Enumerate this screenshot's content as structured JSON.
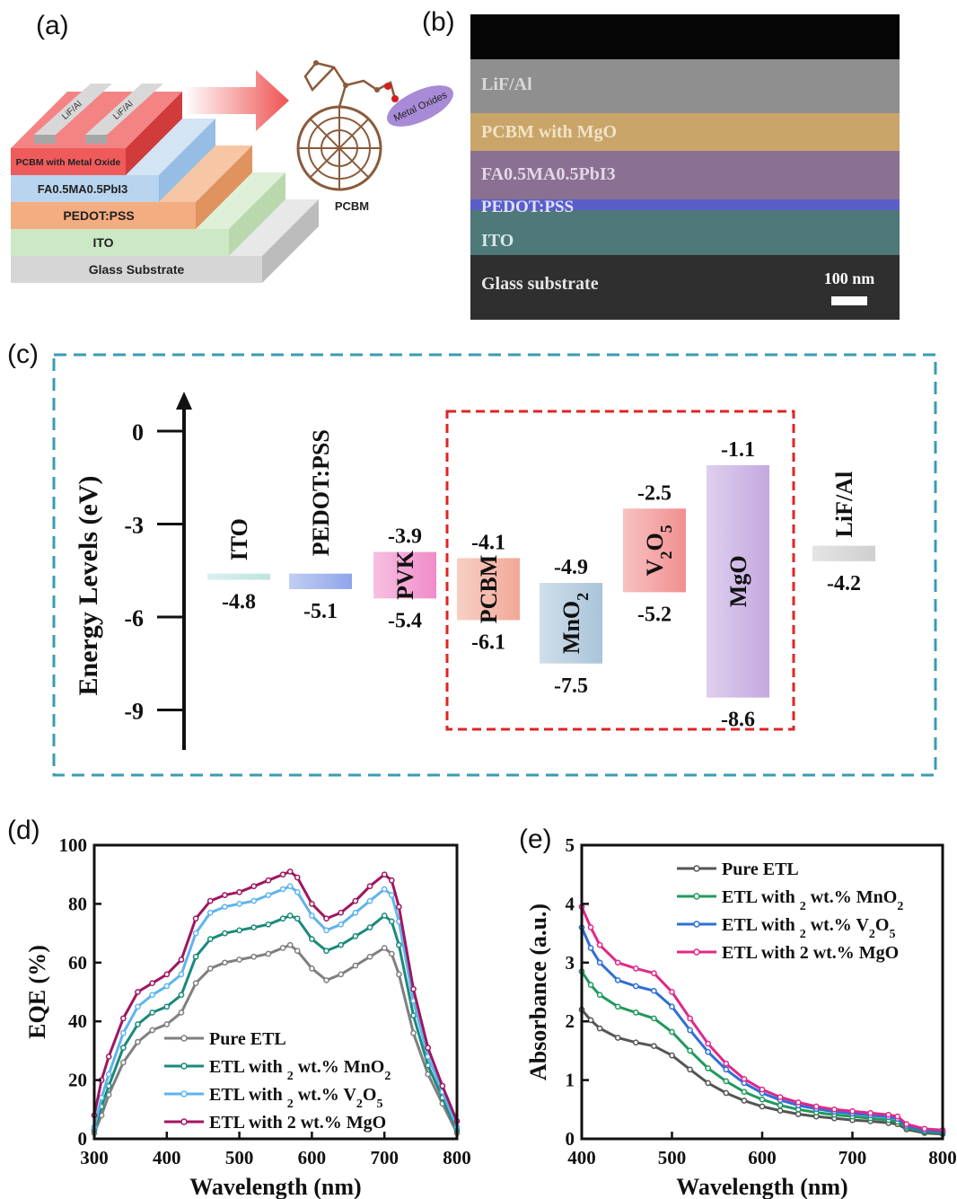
{
  "panels": {
    "a": "(a)",
    "b": "(b)",
    "c": "(c)",
    "d": "(d)",
    "e": "(e)"
  },
  "device": {
    "layers": [
      "Glass Substrate",
      "ITO",
      "PEDOT:PSS",
      "FA0.5MA0.5PbI3",
      "PCBM with Metal Oxide"
    ],
    "electrodes": [
      "LiF/Al",
      "LiF/Al"
    ],
    "molecule_label": "PCBM",
    "oxide_label": "Metal Oxides",
    "colors": {
      "glass": "#d6d6d6",
      "ito": "#cde8c5",
      "pedot": "#f3ad80",
      "pvk": "#b8d4ee",
      "pcbm": "#ef5b5b",
      "electrode": "#bdbdbd",
      "oxide": "#a88bd6"
    }
  },
  "sem": {
    "layers": [
      "LiF/Al",
      "PCBM with MgO",
      "FA0.5MA0.5PbI3",
      "PEDOT:PSS",
      "ITO",
      "Glass substrate"
    ],
    "scale_bar": "100 nm",
    "colors": {
      "lif": "#8f8f8f",
      "pcbm": "#c9a56a",
      "pvk": "#8a7192",
      "pedot": "#5a5ec9",
      "ito": "#4f7878",
      "glass": "#2f2f2f"
    }
  },
  "energy": {
    "ylabel": "Energy Levels (eV)",
    "yticks": [
      0,
      -3,
      -6,
      -9
    ],
    "materials": [
      {
        "name": "ITO",
        "top": -4.6,
        "bottom": -4.8,
        "top_label": "",
        "bottom_label": "-4.8",
        "color": "#bfe3df"
      },
      {
        "name": "PEDOT:PSS",
        "top": -4.6,
        "bottom": -5.1,
        "top_label": "",
        "bottom_label": "-5.1",
        "color": "#8ea5ea"
      },
      {
        "name": "PVK",
        "top": -3.9,
        "bottom": -5.4,
        "top_label": "-3.9",
        "bottom_label": "-5.4",
        "color": "#f08cc8"
      },
      {
        "name": "PCBM",
        "top": -4.1,
        "bottom": -6.1,
        "top_label": "-4.1",
        "bottom_label": "-6.1",
        "color": "#f2a896"
      },
      {
        "name": "MnO2",
        "top": -4.9,
        "bottom": -7.5,
        "top_label": "-4.9",
        "bottom_label": "-7.5",
        "color": "#a9c4d9"
      },
      {
        "name": "V2O5",
        "top": -2.5,
        "bottom": -5.2,
        "top_label": "-2.5",
        "bottom_label": "-5.2",
        "color": "#f28f8f"
      },
      {
        "name": "MgO",
        "top": -1.1,
        "bottom": -8.6,
        "top_label": "-1.1",
        "bottom_label": "-8.6",
        "color": "#c4a8e0"
      },
      {
        "name": "LiF/Al",
        "top": -3.7,
        "bottom": -4.2,
        "top_label": "",
        "bottom_label": "-4.2",
        "color": "#cfcfcf"
      }
    ]
  },
  "chart_data": [
    {
      "type": "line",
      "xlabel": "Wavelength (nm)",
      "ylabel": "EQE (%)",
      "xlim": [
        300,
        800
      ],
      "ylim": [
        0,
        100
      ],
      "xticks": [
        300,
        400,
        500,
        600,
        700,
        800
      ],
      "yticks": [
        0,
        20,
        40,
        60,
        80,
        100
      ],
      "legend_position": "lower-center",
      "x": [
        300,
        310,
        320,
        340,
        360,
        380,
        400,
        420,
        440,
        460,
        480,
        500,
        520,
        540,
        560,
        570,
        580,
        600,
        620,
        640,
        660,
        680,
        700,
        710,
        720,
        740,
        760,
        780,
        800
      ],
      "series": [
        {
          "name": "Pure ETL",
          "color": "#7f7f7f",
          "values": [
            2,
            8,
            15,
            26,
            33,
            37,
            39,
            43,
            53,
            58,
            60,
            61,
            62,
            63,
            65,
            66,
            64,
            58,
            54,
            56,
            59,
            62,
            65,
            63,
            56,
            36,
            22,
            12,
            2
          ]
        },
        {
          "name": "ETL with 2 wt.% MnO2",
          "color": "#1a8a7a",
          "values": [
            3,
            11,
            18,
            31,
            39,
            43,
            45,
            49,
            62,
            68,
            70,
            71,
            72,
            73,
            75,
            76,
            75,
            68,
            64,
            66,
            69,
            72,
            76,
            74,
            66,
            42,
            25,
            14,
            3
          ]
        },
        {
          "name": "ETL with 2 wt.% V2O5",
          "color": "#5fb4ef",
          "values": [
            4,
            14,
            22,
            36,
            45,
            49,
            52,
            56,
            70,
            77,
            79,
            80,
            81,
            83,
            85,
            86,
            84,
            76,
            71,
            73,
            77,
            81,
            85,
            83,
            74,
            47,
            28,
            16,
            4
          ]
        },
        {
          "name": "ETL with 2 wt.% MgO",
          "color": "#a0165f",
          "values": [
            8,
            20,
            28,
            41,
            50,
            53,
            56,
            61,
            75,
            81,
            83,
            84,
            86,
            88,
            90,
            91,
            89,
            80,
            75,
            77,
            81,
            86,
            90,
            88,
            79,
            51,
            31,
            18,
            6
          ]
        }
      ]
    },
    {
      "type": "line",
      "xlabel": "Wavelength (nm)",
      "ylabel": "Absorbance (a.u.)",
      "xlim": [
        400,
        800
      ],
      "ylim": [
        0,
        5
      ],
      "xticks": [
        400,
        500,
        600,
        700,
        800
      ],
      "yticks": [
        0,
        1,
        2,
        3,
        4,
        5
      ],
      "legend_position": "top-right",
      "x": [
        400,
        410,
        420,
        440,
        460,
        480,
        500,
        520,
        540,
        560,
        580,
        600,
        620,
        640,
        660,
        680,
        700,
        720,
        740,
        750,
        760,
        780,
        800
      ],
      "series": [
        {
          "name": "Pure ETL",
          "color": "#555555",
          "values": [
            2.2,
            2.02,
            1.88,
            1.72,
            1.64,
            1.58,
            1.42,
            1.18,
            0.95,
            0.78,
            0.65,
            0.55,
            0.48,
            0.42,
            0.38,
            0.35,
            0.32,
            0.3,
            0.27,
            0.25,
            0.16,
            0.1,
            0.08
          ]
        },
        {
          "name": "ETL with 2 wt.% MnO2",
          "color": "#1f9a5c",
          "values": [
            2.85,
            2.62,
            2.45,
            2.25,
            2.15,
            2.05,
            1.82,
            1.5,
            1.2,
            0.98,
            0.8,
            0.67,
            0.57,
            0.5,
            0.45,
            0.41,
            0.38,
            0.35,
            0.32,
            0.29,
            0.19,
            0.12,
            0.1
          ]
        },
        {
          "name": "ETL with 2 wt.% V2O5",
          "color": "#2f6fd6",
          "values": [
            3.6,
            3.25,
            3.0,
            2.7,
            2.6,
            2.52,
            2.25,
            1.85,
            1.48,
            1.18,
            0.95,
            0.78,
            0.66,
            0.57,
            0.51,
            0.46,
            0.43,
            0.4,
            0.37,
            0.34,
            0.22,
            0.14,
            0.12
          ]
        },
        {
          "name": "ETL with 2 wt.% MgO",
          "color": "#e0288a",
          "values": [
            3.95,
            3.6,
            3.3,
            3.0,
            2.9,
            2.82,
            2.5,
            2.05,
            1.62,
            1.28,
            1.02,
            0.84,
            0.71,
            0.62,
            0.55,
            0.5,
            0.47,
            0.44,
            0.41,
            0.38,
            0.25,
            0.17,
            0.15
          ]
        }
      ]
    }
  ]
}
